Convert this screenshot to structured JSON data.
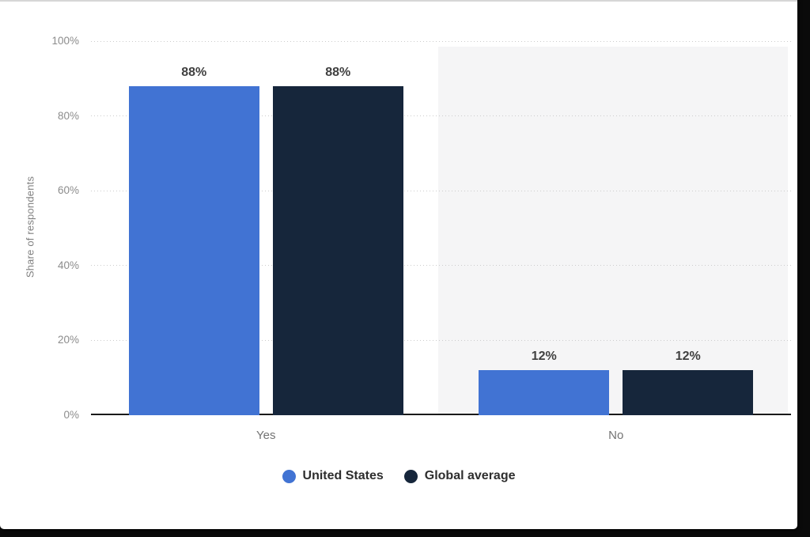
{
  "frame": {
    "background": "#0a0a0a",
    "window_background": "#ffffff",
    "window_top_border": "#d6d6d6"
  },
  "chart_data": {
    "type": "bar",
    "categories": [
      "Yes",
      "No"
    ],
    "series": [
      {
        "name": "United States",
        "color": "#4173d3",
        "values": [
          88,
          12
        ],
        "labels": [
          "88%",
          "12%"
        ]
      },
      {
        "name": "Global average",
        "color": "#16263b",
        "values": [
          88,
          12
        ],
        "labels": [
          "88%",
          "12%"
        ]
      }
    ],
    "ylabel": "Share of respondents",
    "xlabel": "",
    "ylim": [
      0,
      100
    ],
    "ytick_values": [
      0,
      20,
      40,
      60,
      80,
      100
    ],
    "ytick_labels": [
      "0%",
      "20%",
      "40%",
      "60%",
      "80%",
      "100%"
    ],
    "grid": "horizontal-dotted",
    "legend_position": "bottom",
    "highlighted_category_index": 1,
    "highlight_color": "#f5f5f6",
    "colors": {
      "axis_line": "#1a1a1a",
      "gridline": "#cccccc",
      "tick_text": "#8c8c8c",
      "category_text": "#737373",
      "value_label_text": "#404040",
      "legend_text": "#2e2e2e",
      "axis_title_text": "#808080"
    }
  }
}
